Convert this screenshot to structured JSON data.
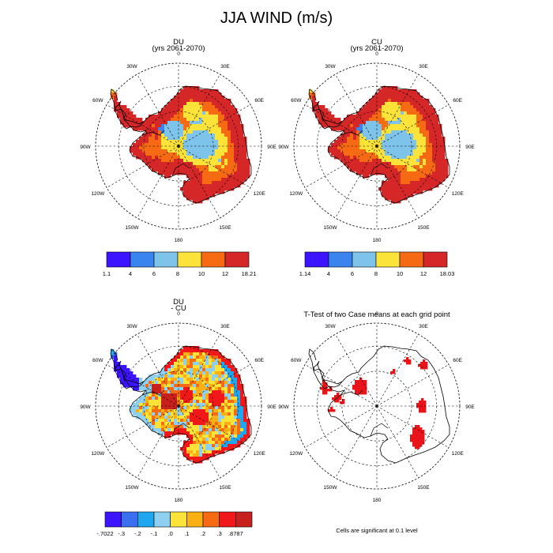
{
  "title": "JJA WIND (m/s)",
  "colors": {
    "abs": [
      "#3c14ff",
      "#3a84f0",
      "#7ec3ea",
      "#fbe33a",
      "#f56a12",
      "#d62728"
    ],
    "diff": [
      "#3c14ff",
      "#3a6ff0",
      "#1ea7f0",
      "#8fd0f0",
      "#fbe33a",
      "#f8b015",
      "#f56a12",
      "#f01818",
      "#c8201c"
    ],
    "sig": "#e8141a",
    "coast": "#000000"
  },
  "lon_labels": [
    "0",
    "30E",
    "60E",
    "90E",
    "120E",
    "150E",
    "180",
    "150W",
    "120W",
    "90W",
    "60W",
    "30W"
  ],
  "panels": [
    {
      "id": "du",
      "name": "DU",
      "sub": "(yrs 2061-2070)",
      "type": "abs",
      "colorbar": [
        "1.1",
        "4",
        "6",
        "8",
        "10",
        "12",
        "18.21"
      ]
    },
    {
      "id": "cu",
      "name": "CU",
      "sub": "(yrs 2061-2070)",
      "type": "abs",
      "colorbar": [
        "1.14",
        "4",
        "6",
        "8",
        "10",
        "12",
        "18.03"
      ]
    },
    {
      "id": "diff",
      "name": "DU",
      "sub": "- CU",
      "type": "diff",
      "colorbar": [
        "-.7022",
        "-.3",
        "-.2",
        "-.1",
        ".0",
        ".1",
        ".2",
        ".3",
        ".8787"
      ]
    },
    {
      "id": "ttest",
      "name": "T-Test of two Case means at each grid point",
      "sub": "",
      "type": "sig",
      "colorbar": []
    }
  ],
  "footnote": "Cells are significant at 0.1 level"
}
